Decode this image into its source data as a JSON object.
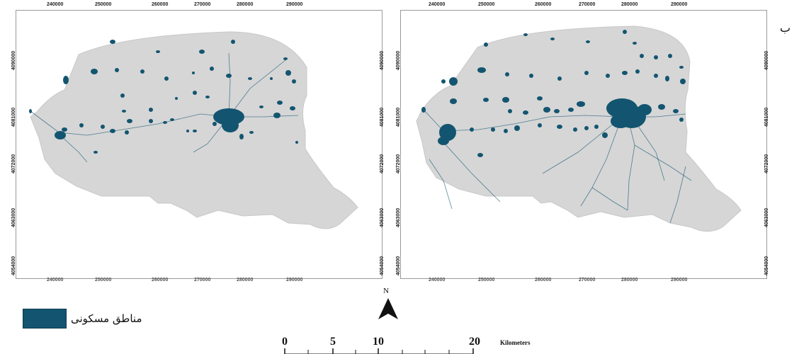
{
  "left_map": {
    "top_coords": [
      "240000",
      "250000",
      "260000",
      "270000",
      "280000",
      "290000"
    ],
    "bottom_coords": [
      "240000",
      "250000",
      "260000",
      "270000",
      "280000",
      "290000"
    ],
    "side_coords": [
      "4090000",
      "4081000",
      "4072000",
      "4063000",
      "4054000"
    ]
  },
  "right_map": {
    "top_coords": [
      "240000",
      "250000",
      "260000",
      "270000",
      "280000",
      "290000"
    ],
    "bottom_coords": [
      "240000",
      "250000",
      "260000",
      "270000",
      "280000",
      "290000"
    ],
    "side_coords": [
      "4090000",
      "4081000",
      "4072000",
      "4063000",
      "4054000"
    ],
    "panel_label": "ب"
  },
  "legend": {
    "label": "مناطق مسکونی",
    "color": "#135570"
  },
  "north_arrow": {
    "letter": "N"
  },
  "scale_bar": {
    "labels": [
      "0",
      "5",
      "10",
      "20"
    ],
    "unit": "Kilometers"
  },
  "colors": {
    "study_area": "#d6d6d6",
    "residential": "#135570"
  }
}
